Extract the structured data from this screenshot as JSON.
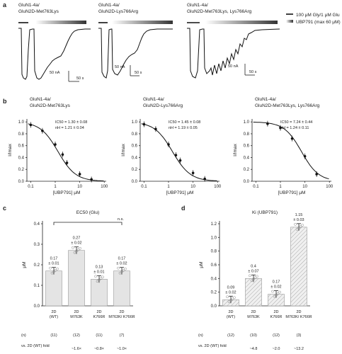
{
  "panels": {
    "a": {
      "label": "a",
      "legend_glu": "100 μM Gly/1 μM Glu",
      "legend_ubp": "UBP791 (max 60 μM)",
      "traces": [
        {
          "title1": "GluN1-4a/",
          "title2": "GluN2D-Met763Lys",
          "scale_i": "50 nA",
          "scale_t": "50 s"
        },
        {
          "title1": "GluN1-4a/",
          "title2": "GluN2D-Lys766Arg",
          "scale_i": "50 nA",
          "scale_t": "50 s"
        },
        {
          "title1": "GluN1-4a/",
          "title2": "GluN2D-Met763Lys, Lys766Arg",
          "scale_i": "50 nA",
          "scale_t": "50 s"
        }
      ]
    },
    "b": {
      "label": "b",
      "plots": [
        {
          "title1": "GluN1-4a/",
          "title2": "GluN2D-Met763Lys",
          "ic50": "IC50 = 1.30 ± 0.08",
          "nh": "nH = 1.21 ± 0.04",
          "ylabel": "I/Imax",
          "xlabel": "[UBP791] μM"
        },
        {
          "title1": "GluN1-4a/",
          "title2": "GluN2D-Lys766Arg",
          "ic50": "IC50 = 1.45 ± 0.08",
          "nh": "nH = 1.19 ± 0.05",
          "ylabel": "I/Imax",
          "xlabel": "[UBP791] μM"
        },
        {
          "title1": "GluN1-4a/",
          "title2": "GluN2D-Met763Lys, Lys766Arg",
          "ic50": "IC50 = 7.24 ± 0.44",
          "nh": "nH = 1.24 ± 0.11",
          "ylabel": "I/Imax",
          "xlabel": "[UBP791] μM"
        }
      ],
      "y_ticks": [
        "0.0",
        "0.2",
        "0.4",
        "0.6",
        "0.8",
        "1.0"
      ],
      "x_ticks": [
        "0.1",
        "1",
        "10",
        "100"
      ]
    },
    "c": {
      "label": "c",
      "title": "EC50 (Glu)",
      "ylabel": "μM",
      "sig": "n.s.",
      "y_ticks": [
        "0.0",
        "0.1",
        "0.2",
        "0.3",
        "0.4"
      ],
      "n_label": "(n)",
      "fold_label": "vs. 2D (WT) fold",
      "bars": [
        {
          "name1": "2D",
          "name2": "(WT)",
          "ann1": "0.17",
          "ann2": "± 0.01",
          "n": "(11)",
          "fold": ""
        },
        {
          "name1": "2D",
          "name2": "M763K",
          "ann1": "0.27",
          "ann2": "± 0.02",
          "n": "(12)",
          "fold": "~1.6×"
        },
        {
          "name1": "2D",
          "name2": "K766R",
          "ann1": "0.13",
          "ann2": "± 0.01",
          "n": "(11)",
          "fold": "~0.8×"
        },
        {
          "name1": "2D",
          "name2": "M763K/ K766R",
          "ann1": "0.17",
          "ann2": "± 0.02",
          "n": "(7)",
          "fold": "~1.0×"
        }
      ]
    },
    "d": {
      "label": "d",
      "title": "Ki (UBP791)",
      "ylabel": "μM",
      "y_ticks": [
        "0.0",
        "0.2",
        "0.4",
        "0.6",
        "0.8",
        "1.0",
        "1.2"
      ],
      "n_label": "(n)",
      "fold_label": "vs. 2D (WT) fold",
      "bars": [
        {
          "name1": "2D",
          "name2": "(WT)",
          "ann1": "0.09",
          "ann2": "± 0.02",
          "n": "(12)",
          "fold": ""
        },
        {
          "name1": "2D",
          "name2": "M763K",
          "ann1": "0.4",
          "ann2": "± 0.07",
          "n": "(10)",
          "fold": "~4.8"
        },
        {
          "name1": "2D",
          "name2": "K766R",
          "ann1": "0.17",
          "ann2": "± 0.02",
          "n": "(12)",
          "fold": "~2.0"
        },
        {
          "name1": "2D",
          "name2": "M763K/ K766R",
          "ann1": "1.15",
          "ann2": "± 0.03",
          "n": "(3)",
          "fold": "~13.2"
        }
      ]
    }
  },
  "chart_data": [
    {
      "type": "line",
      "panel": "b1",
      "x": [
        0.1,
        0.3,
        1,
        2,
        3,
        10,
        30
      ],
      "y": [
        0.95,
        0.85,
        0.62,
        0.45,
        0.31,
        0.12,
        0.03
      ],
      "ylim": [
        0,
        1.0
      ],
      "xscale": "log"
    },
    {
      "type": "line",
      "panel": "b2",
      "x": [
        0.1,
        0.3,
        1,
        2,
        3,
        10,
        30
      ],
      "y": [
        0.96,
        0.88,
        0.62,
        0.44,
        0.35,
        0.14,
        0.04
      ],
      "ylim": [
        0,
        1.0
      ],
      "xscale": "log"
    },
    {
      "type": "line",
      "panel": "b3",
      "x": [
        0.3,
        1,
        3,
        10,
        30
      ],
      "y": [
        0.97,
        0.9,
        0.72,
        0.42,
        0.12
      ],
      "ylim": [
        0,
        1.0
      ],
      "xscale": "log"
    },
    {
      "type": "bar",
      "panel": "c",
      "categories": [
        "2D (WT)",
        "2D M763K",
        "2D K766R",
        "2D M763K/K766R"
      ],
      "values": [
        0.17,
        0.27,
        0.13,
        0.17
      ],
      "ylim": [
        0,
        0.4
      ]
    },
    {
      "type": "bar",
      "panel": "d",
      "categories": [
        "2D (WT)",
        "2D M763K",
        "2D K766R",
        "2D M763K/K766R"
      ],
      "values": [
        0.09,
        0.4,
        0.17,
        1.15
      ],
      "ylim": [
        0,
        1.2
      ]
    }
  ]
}
